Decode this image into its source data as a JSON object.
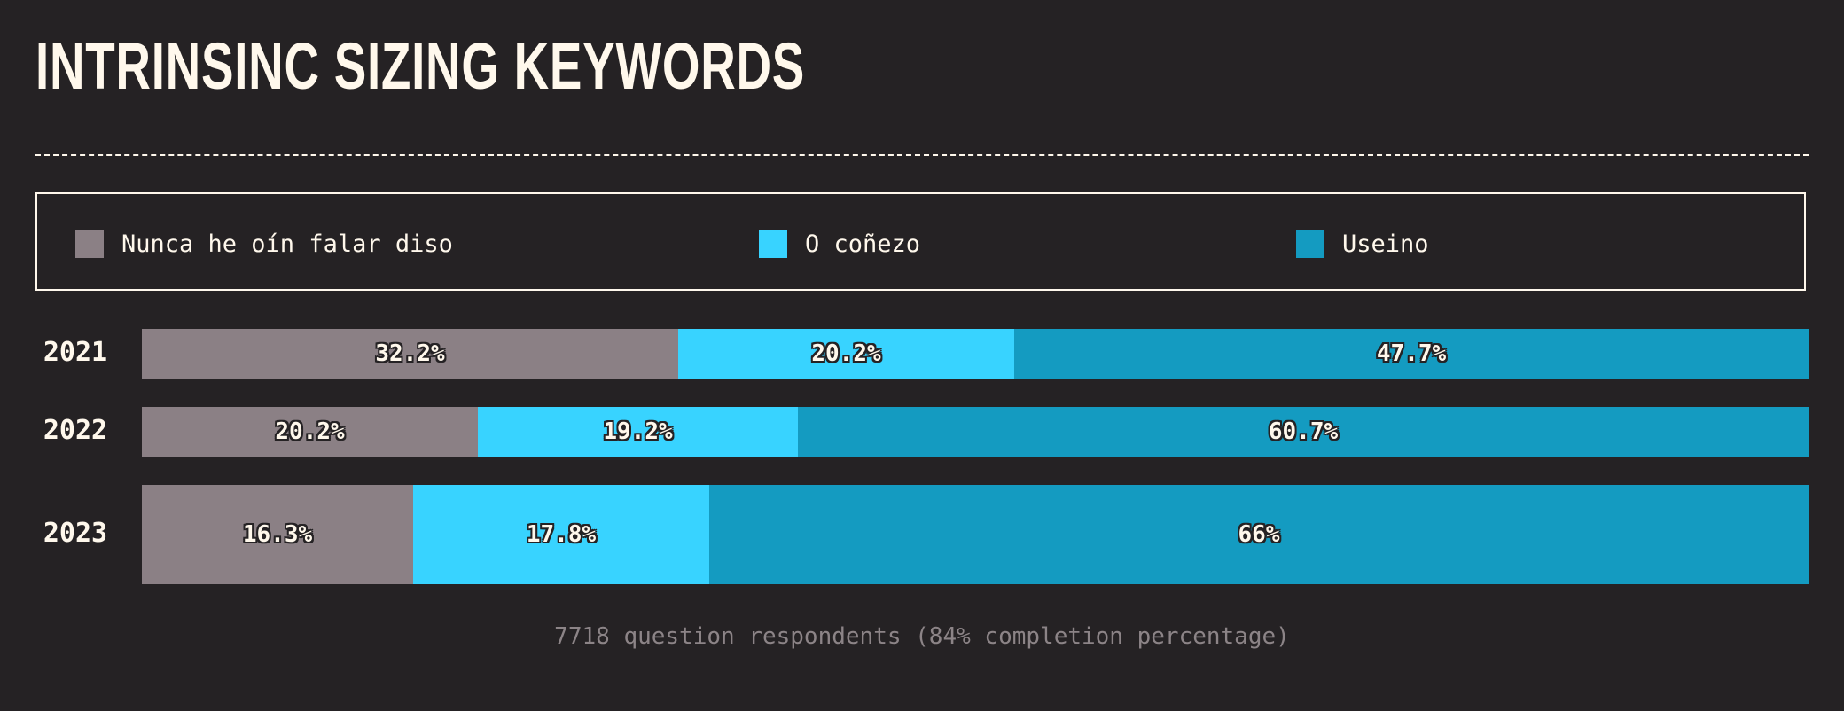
{
  "title": "INTRINSINC SIZING KEYWORDS",
  "legend": [
    {
      "label": "Nunca he oín falar diso",
      "color": "#8b8085"
    },
    {
      "label": "O coñezo",
      "color": "#38d3ff"
    },
    {
      "label": "Useino",
      "color": "#149bc1"
    }
  ],
  "chart_data": {
    "type": "bar",
    "orientation": "horizontal",
    "stacked": true,
    "categories": [
      "2021",
      "2022",
      "2023"
    ],
    "series": [
      {
        "name": "Nunca he oín falar diso",
        "values": [
          32.2,
          20.2,
          16.3
        ],
        "labels": [
          "32.2%",
          "20.2%",
          "16.3%"
        ],
        "color": "#8b8085"
      },
      {
        "name": "O coñezo",
        "values": [
          20.2,
          19.2,
          17.8
        ],
        "labels": [
          "20.2%",
          "19.2%",
          "17.8%"
        ],
        "color": "#38d3ff"
      },
      {
        "name": "Useino",
        "values": [
          47.7,
          60.7,
          66
        ],
        "labels": [
          "47.7%",
          "60.7%",
          "66%"
        ],
        "color": "#149bc1"
      }
    ],
    "xlim": [
      0,
      100
    ],
    "legend_position": "top"
  },
  "footer": "7718 question respondents (84% completion percentage)"
}
